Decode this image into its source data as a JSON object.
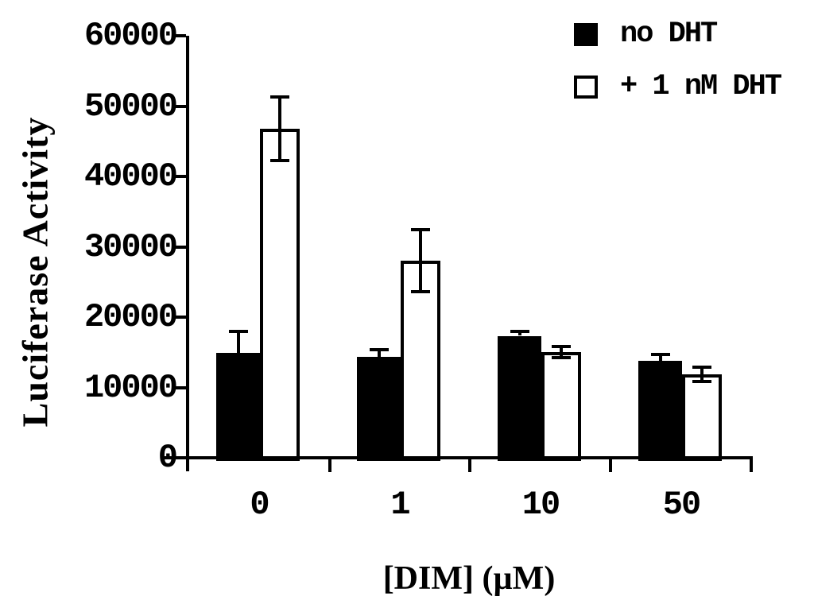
{
  "figure": {
    "background": "#ffffff",
    "ink": "#000000"
  },
  "chart_data": {
    "type": "bar",
    "title": "",
    "xlabel": "[DIM] (µM)",
    "ylabel": "Luciferase Activity",
    "categories": [
      "0",
      "1",
      "10",
      "50"
    ],
    "series": [
      {
        "name": "no DHT",
        "swatch": "filled-black-square",
        "fill": "#000000",
        "values": [
          14900,
          14400,
          17300,
          13800
        ],
        "errors": [
          3000,
          900,
          500,
          800
        ]
      },
      {
        "name": "+ 1 nM DHT",
        "swatch": "open-white-square",
        "fill": "#ffffff",
        "values": [
          46800,
          28000,
          15000,
          11900
        ],
        "errors": [
          4400,
          4300,
          700,
          900
        ]
      }
    ],
    "ylim": [
      0,
      60000
    ],
    "yticks": [
      0,
      10000,
      20000,
      30000,
      40000,
      50000,
      60000
    ],
    "grid": false,
    "error_bars": true,
    "legend_position": "top-right"
  }
}
